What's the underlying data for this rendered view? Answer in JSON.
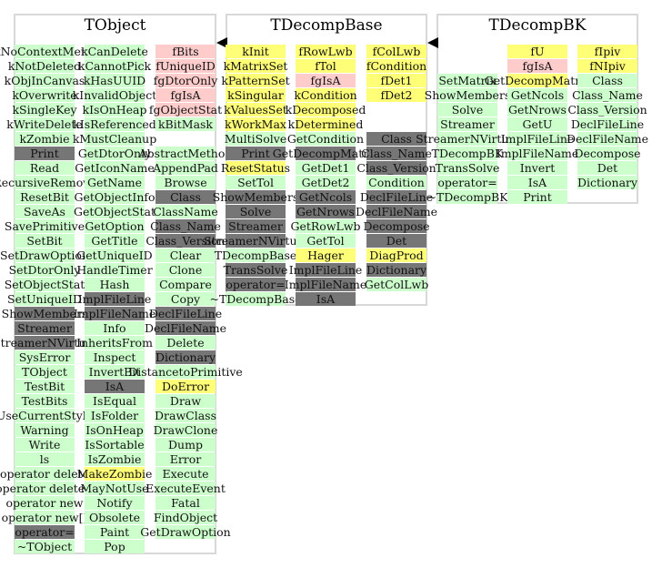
{
  "classes": [
    {
      "name": "TObject",
      "columns": [
        [
          [
            "kNoContextMenu",
            "g"
          ],
          [
            "kNotDeleted",
            "g"
          ],
          [
            "kObjInCanvas",
            "g"
          ],
          [
            "kOverwrite",
            "g"
          ],
          [
            "kSingleKey",
            "g"
          ],
          [
            "kWriteDelete",
            "g"
          ],
          [
            "kZombie",
            "g"
          ],
          [
            "Print",
            "d"
          ],
          [
            "Read",
            "g"
          ],
          [
            "RecursiveRemove",
            "g"
          ],
          [
            "ResetBit",
            "g"
          ],
          [
            "SaveAs",
            "g"
          ],
          [
            "SavePrimitive",
            "g"
          ],
          [
            "SetBit",
            "g"
          ],
          [
            "SetDrawOption",
            "g"
          ],
          [
            "SetDtorOnly",
            "g"
          ],
          [
            "SetObjectStat",
            "g"
          ],
          [
            "SetUniqueID",
            "g"
          ],
          [
            "ShowMembers",
            "d"
          ],
          [
            "Streamer",
            "d"
          ],
          [
            "StreamerNVirtual",
            "d"
          ],
          [
            "SysError",
            "g"
          ],
          [
            "TObject",
            "g"
          ],
          [
            "TestBit",
            "g"
          ],
          [
            "TestBits",
            "g"
          ],
          [
            "UseCurrentStyle",
            "g"
          ],
          [
            "Warning",
            "g"
          ],
          [
            "Write",
            "g"
          ],
          [
            "ls",
            "g"
          ],
          [
            "operator delete",
            "g"
          ],
          [
            "operator delete[]",
            "g"
          ],
          [
            "operator new",
            "g"
          ],
          [
            "operator new[]",
            "g"
          ],
          [
            "operator=",
            "d"
          ],
          [
            "~TObject",
            "g"
          ]
        ],
        [
          [
            "kCanDelete",
            "g"
          ],
          [
            "kCannotPick",
            "g"
          ],
          [
            "kHasUUID",
            "g"
          ],
          [
            "kInvalidObject",
            "g"
          ],
          [
            "kIsOnHeap",
            "g"
          ],
          [
            "kIsReferenced",
            "g"
          ],
          [
            "kMustCleanup",
            "g"
          ],
          [
            "GetDtorOnly",
            "g"
          ],
          [
            "GetIconName",
            "g"
          ],
          [
            "GetName",
            "g"
          ],
          [
            "GetObjectInfo",
            "g"
          ],
          [
            "GetObjectStat",
            "g"
          ],
          [
            "GetOption",
            "g"
          ],
          [
            "GetTitle",
            "g"
          ],
          [
            "GetUniqueID",
            "g"
          ],
          [
            "HandleTimer",
            "g"
          ],
          [
            "Hash",
            "g"
          ],
          [
            "ImplFileLine",
            "d"
          ],
          [
            "ImplFileName",
            "d"
          ],
          [
            "Info",
            "g"
          ],
          [
            "InheritsFrom",
            "g"
          ],
          [
            "Inspect",
            "g"
          ],
          [
            "InvertBit",
            "g"
          ],
          [
            "IsA",
            "d"
          ],
          [
            "IsEqual",
            "g"
          ],
          [
            "IsFolder",
            "g"
          ],
          [
            "IsOnHeap",
            "g"
          ],
          [
            "IsSortable",
            "g"
          ],
          [
            "IsZombie",
            "g"
          ],
          [
            "MakeZombie",
            "y"
          ],
          [
            "MayNotUse",
            "g"
          ],
          [
            "Notify",
            "g"
          ],
          [
            "Obsolete",
            "g"
          ],
          [
            "Paint",
            "g"
          ],
          [
            "Pop",
            "g"
          ]
        ],
        [
          [
            "fBits",
            "p"
          ],
          [
            "fUniqueID",
            "p"
          ],
          [
            "fgDtorOnly",
            "p"
          ],
          [
            "fgIsA",
            "p"
          ],
          [
            "fgObjectStat",
            "p"
          ],
          [
            "kBitMask",
            "g"
          ],
          null,
          [
            "AbstractMethod",
            "g"
          ],
          [
            "AppendPad",
            "g"
          ],
          [
            "Browse",
            "g"
          ],
          [
            "Class",
            "d"
          ],
          [
            "ClassName",
            "g"
          ],
          [
            "Class_Name",
            "d"
          ],
          [
            "Class_Version",
            "d"
          ],
          [
            "Clear",
            "g"
          ],
          [
            "Clone",
            "g"
          ],
          [
            "Compare",
            "g"
          ],
          [
            "Copy",
            "g"
          ],
          [
            "DeclFileLine",
            "d"
          ],
          [
            "DeclFileName",
            "d"
          ],
          [
            "Delete",
            "g"
          ],
          [
            "Dictionary",
            "d"
          ],
          [
            "DistancetoPrimitive",
            "g"
          ],
          [
            "DoError",
            "y"
          ],
          [
            "Draw",
            "g"
          ],
          [
            "DrawClass",
            "g"
          ],
          [
            "DrawClone",
            "g"
          ],
          [
            "Dump",
            "g"
          ],
          [
            "Error",
            "g"
          ],
          [
            "Execute",
            "g"
          ],
          [
            "ExecuteEvent",
            "g"
          ],
          [
            "Fatal",
            "g"
          ],
          [
            "FindObject",
            "g"
          ],
          [
            "GetDrawOption",
            "g"
          ]
        ]
      ]
    },
    {
      "name": "TDecompBase",
      "columns": [
        [
          [
            "kInit",
            "y"
          ],
          [
            "kMatrixSet",
            "y"
          ],
          [
            "kPatternSet",
            "y"
          ],
          [
            "kSingular",
            "y"
          ],
          [
            "kValuesSet",
            "y"
          ],
          [
            "kWorkMax",
            "y"
          ],
          [
            "MultiSolve",
            "g"
          ],
          [
            "Print",
            "d"
          ],
          [
            "ResetStatus",
            "y"
          ],
          [
            "SetTol",
            "g"
          ],
          [
            "ShowMembers",
            "d"
          ],
          [
            "Solve",
            "d"
          ],
          [
            "Streamer",
            "d"
          ],
          [
            "StreamerNVirtual",
            "d"
          ],
          [
            "TDecompBase",
            "g"
          ],
          [
            "TransSolve",
            "d"
          ],
          [
            "operator=",
            "d"
          ],
          [
            "~TDecompBase",
            "g"
          ]
        ],
        [
          [
            "fRowLwb",
            "y"
          ],
          [
            "fTol",
            "y"
          ],
          [
            "fgIsA",
            "p"
          ],
          [
            "kCondition",
            "y"
          ],
          [
            "kDecomposed",
            "y"
          ],
          [
            "kDetermined",
            "y"
          ],
          [
            "GetCondition",
            "g"
          ],
          [
            "GetDecompMatrix",
            "d"
          ],
          [
            "GetDet1",
            "g"
          ],
          [
            "GetDet2",
            "g"
          ],
          [
            "GetNcols",
            "d"
          ],
          [
            "GetNrows",
            "d"
          ],
          [
            "GetRowLwb",
            "g"
          ],
          [
            "GetTol",
            "g"
          ],
          [
            "Hager",
            "y"
          ],
          [
            "ImplFileLine",
            "d"
          ],
          [
            "ImplFileName",
            "d"
          ],
          [
            "IsA",
            "d"
          ]
        ],
        [
          [
            "fColLwb",
            "y"
          ],
          [
            "fCondition",
            "y"
          ],
          [
            "fDet1",
            "y"
          ],
          [
            "fDet2",
            "y"
          ],
          null,
          null,
          [
            "Class",
            "d"
          ],
          [
            "Class_Name",
            "d"
          ],
          [
            "Class_Version",
            "d"
          ],
          [
            "Condition",
            "g"
          ],
          [
            "DeclFileLine",
            "d"
          ],
          [
            "DeclFileName",
            "d"
          ],
          [
            "Decompose",
            "d"
          ],
          [
            "Det",
            "d"
          ],
          [
            "DiagProd",
            "y"
          ],
          [
            "Dictionary",
            "d"
          ],
          [
            "GetColLwb",
            "g"
          ]
        ]
      ]
    },
    {
      "name": "TDecompBK",
      "columns": [
        [
          null,
          null,
          [
            "SetMatrix",
            "g"
          ],
          [
            "ShowMembers",
            "g"
          ],
          [
            "Solve",
            "g"
          ],
          [
            "Streamer",
            "g"
          ],
          [
            "StreamerNVirtual",
            "g"
          ],
          [
            "TDecompBK",
            "g"
          ],
          [
            "TransSolve",
            "g"
          ],
          [
            "operator=",
            "g"
          ],
          [
            "~TDecompBK",
            "g"
          ]
        ],
        [
          [
            "fU",
            "y"
          ],
          [
            "fgIsA",
            "p"
          ],
          [
            "GetDecompMatrix",
            "y"
          ],
          [
            "GetNcols",
            "g"
          ],
          [
            "GetNrows",
            "g"
          ],
          [
            "GetU",
            "g"
          ],
          [
            "ImplFileLine",
            "g"
          ],
          [
            "ImplFileName",
            "g"
          ],
          [
            "Invert",
            "g"
          ],
          [
            "IsA",
            "g"
          ],
          [
            "Print",
            "g"
          ]
        ],
        [
          [
            "fIpiv",
            "y"
          ],
          [
            "fNIpiv",
            "y"
          ],
          [
            "Class",
            "g"
          ],
          [
            "Class_Name",
            "g"
          ],
          [
            "Class_Version",
            "g"
          ],
          [
            "DeclFileLine",
            "g"
          ],
          [
            "DeclFileName",
            "g"
          ],
          [
            "Decompose",
            "g"
          ],
          [
            "Det",
            "g"
          ],
          [
            "Dictionary",
            "g"
          ]
        ]
      ]
    }
  ],
  "colors": {
    "g": "#ccffcc",
    "d": "#767676",
    "p": "#ffcccc",
    "y": "#ffff77"
  }
}
